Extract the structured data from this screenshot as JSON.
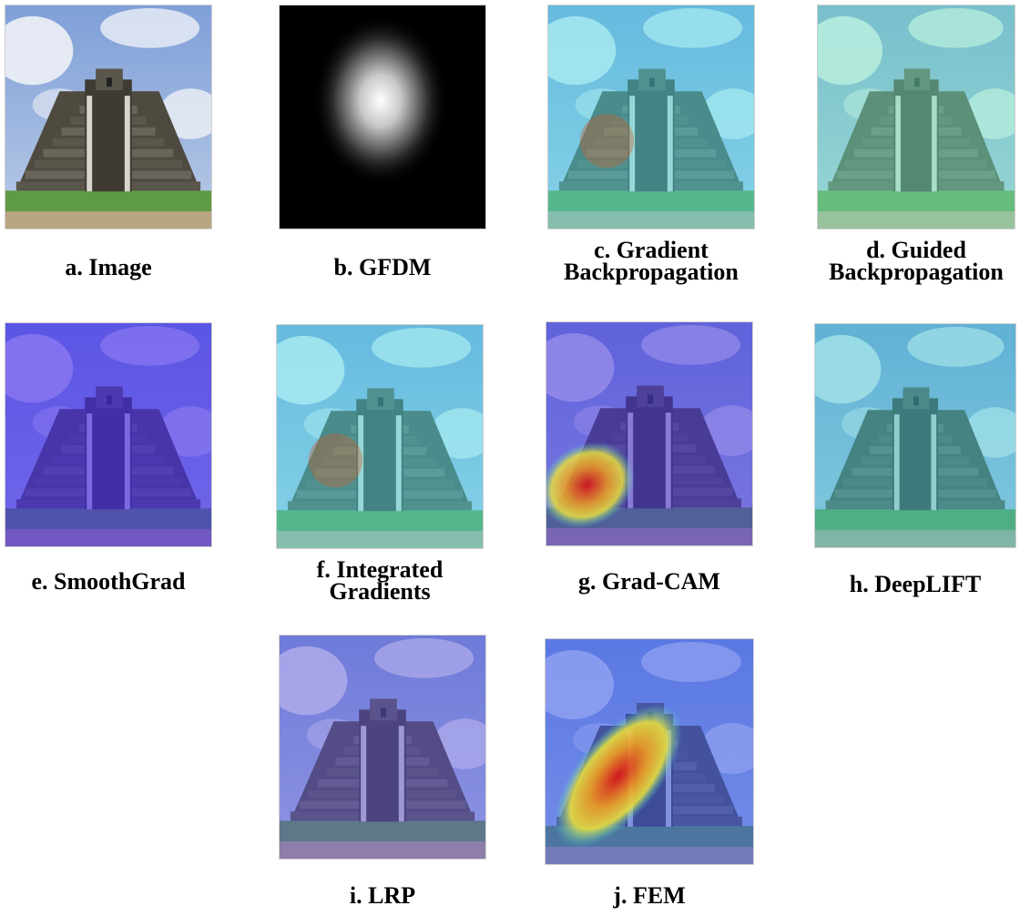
{
  "figure": {
    "panels": [
      {
        "id": "a",
        "caption": [
          "a. Image"
        ],
        "overlay": "none"
      },
      {
        "id": "b",
        "caption": [
          "b. GFDM"
        ],
        "overlay": "gfdm"
      },
      {
        "id": "c",
        "caption": [
          "c. Gradient",
          "Backpropagation"
        ],
        "overlay": "cyan"
      },
      {
        "id": "d",
        "caption": [
          "d. Guided",
          "Backpropagation"
        ],
        "overlay": "green"
      },
      {
        "id": "e",
        "caption": [
          "e. SmoothGrad"
        ],
        "overlay": "violet"
      },
      {
        "id": "f",
        "caption": [
          "f. Integrated",
          "Gradients"
        ],
        "overlay": "cyan"
      },
      {
        "id": "g",
        "caption": [
          "g. Grad-CAM"
        ],
        "overlay": "gradcam"
      },
      {
        "id": "h",
        "caption": [
          "h. DeepLIFT"
        ],
        "overlay": "teal"
      },
      {
        "id": "i",
        "caption": [
          "i. LRP"
        ],
        "overlay": "lavender"
      },
      {
        "id": "j",
        "caption": [
          "j. FEM"
        ],
        "overlay": "fem"
      }
    ]
  }
}
